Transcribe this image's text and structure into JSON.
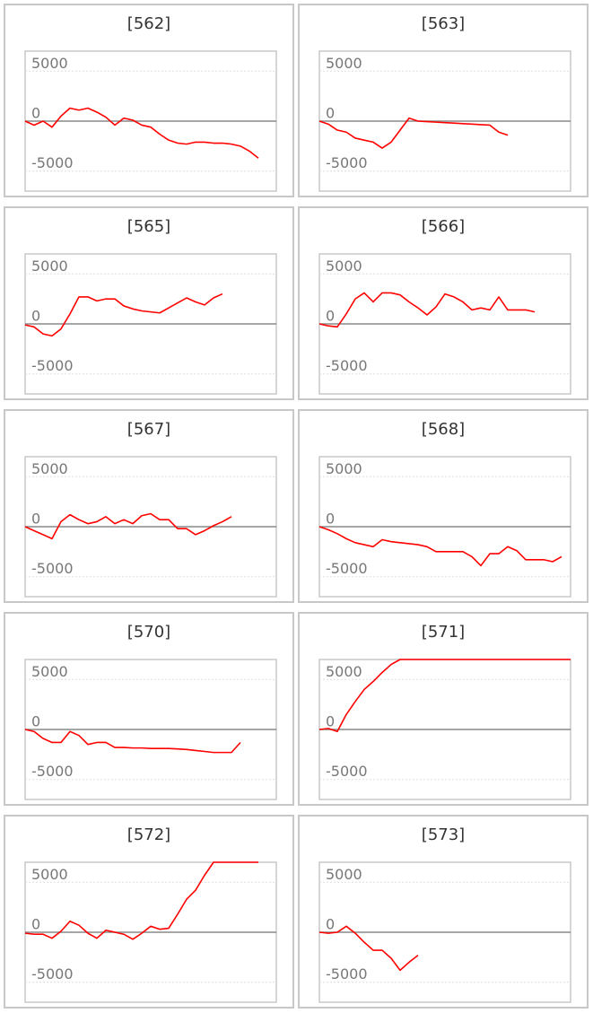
{
  "chart_data": [
    {
      "type": "line",
      "title": "[562]",
      "color": "#ff0000",
      "xlim": [
        0,
        28
      ],
      "ylim": [
        -7000,
        7000
      ],
      "yticks": [
        -5000,
        0,
        5000
      ],
      "values": [
        0,
        -400,
        0,
        -600,
        500,
        1300,
        1100,
        1300,
        900,
        400,
        -400,
        300,
        100,
        -400,
        -600,
        -1300,
        -1900,
        -2200,
        -2300,
        -2100,
        -2100,
        -2200,
        -2200,
        -2300,
        -2500,
        -3000,
        -3700
      ]
    },
    {
      "type": "line",
      "title": "[563]",
      "color": "#ff0000",
      "xlim": [
        0,
        28
      ],
      "ylim": [
        -7000,
        7000
      ],
      "yticks": [
        -5000,
        0,
        5000
      ],
      "values": [
        0,
        -300,
        -900,
        -1100,
        -1700,
        -1900,
        -2100,
        -2700,
        -2100,
        -900,
        300,
        0,
        -50,
        -100,
        -150,
        -200,
        -250,
        -300,
        -350,
        -400,
        -1100,
        -1400
      ]
    },
    {
      "type": "line",
      "title": "[565]",
      "color": "#ff0000",
      "xlim": [
        0,
        28
      ],
      "ylim": [
        -7000,
        7000
      ],
      "yticks": [
        -5000,
        0,
        5000
      ],
      "values": [
        -100,
        -300,
        -1000,
        -1200,
        -500,
        1000,
        2700,
        2700,
        2300,
        2500,
        2500,
        1800,
        1500,
        1300,
        1200,
        1100,
        1600,
        2100,
        2600,
        2200,
        1900,
        2600,
        3000
      ]
    },
    {
      "type": "line",
      "title": "[566]",
      "color": "#ff0000",
      "xlim": [
        0,
        28
      ],
      "ylim": [
        -7000,
        7000
      ],
      "yticks": [
        -5000,
        0,
        5000
      ],
      "values": [
        0,
        -200,
        -300,
        1000,
        2500,
        3100,
        2200,
        3100,
        3100,
        2900,
        2200,
        1600,
        900,
        1700,
        3000,
        2700,
        2200,
        1400,
        1600,
        1400,
        2700,
        1400,
        1400,
        1400,
        1200
      ]
    },
    {
      "type": "line",
      "title": "[567]",
      "color": "#ff0000",
      "xlim": [
        0,
        28
      ],
      "ylim": [
        -7000,
        7000
      ],
      "yticks": [
        -5000,
        0,
        5000
      ],
      "values": [
        0,
        -400,
        -800,
        -1200,
        500,
        1200,
        700,
        300,
        500,
        1000,
        300,
        700,
        300,
        1100,
        1300,
        700,
        700,
        -200,
        -200,
        -800,
        -400,
        100,
        500,
        1000
      ]
    },
    {
      "type": "line",
      "title": "[568]",
      "color": "#ff0000",
      "xlim": [
        0,
        28
      ],
      "ylim": [
        -7000,
        7000
      ],
      "yticks": [
        -5000,
        0,
        5000
      ],
      "values": [
        0,
        -300,
        -700,
        -1200,
        -1600,
        -1800,
        -2000,
        -1300,
        -1500,
        -1600,
        -1700,
        -1800,
        -2000,
        -2500,
        -2500,
        -2500,
        -2500,
        -3000,
        -3900,
        -2700,
        -2700,
        -2000,
        -2400,
        -3300,
        -3300,
        -3300,
        -3500,
        -3000
      ]
    },
    {
      "type": "line",
      "title": "[570]",
      "color": "#ff0000",
      "xlim": [
        0,
        28
      ],
      "ylim": [
        -7000,
        7000
      ],
      "yticks": [
        -5000,
        0,
        5000
      ],
      "values": [
        0,
        -200,
        -900,
        -1300,
        -1300,
        -200,
        -600,
        -1500,
        -1300,
        -1300,
        -1800,
        -1800,
        -1850,
        -1850,
        -1900,
        -1900,
        -1900,
        -1950,
        -2000,
        -2100,
        -2200,
        -2300,
        -2300,
        -2300,
        -1300
      ]
    },
    {
      "type": "line",
      "title": "[571]",
      "color": "#ff0000",
      "xlim": [
        0,
        28
      ],
      "ylim": [
        -7000,
        7000
      ],
      "yticks": [
        -5000,
        0,
        5000
      ],
      "values": [
        0,
        100,
        -200,
        1500,
        2800,
        4000,
        4800,
        5700,
        6500,
        7000,
        7000,
        7000,
        7000,
        7000,
        7000,
        7000,
        7000,
        7000,
        7000,
        7000,
        7000,
        7000,
        7000,
        7000,
        7000,
        7000,
        7000,
        7000,
        7000
      ]
    },
    {
      "type": "line",
      "title": "[572]",
      "color": "#ff0000",
      "xlim": [
        0,
        28
      ],
      "ylim": [
        -7000,
        7000
      ],
      "yticks": [
        -5000,
        0,
        5000
      ],
      "values": [
        -100,
        -200,
        -200,
        -600,
        100,
        1100,
        700,
        -100,
        -600,
        200,
        0,
        -200,
        -700,
        -100,
        600,
        300,
        400,
        1800,
        3300,
        4200,
        5700,
        7000,
        7000,
        7000,
        7000,
        7000,
        7000
      ]
    },
    {
      "type": "line",
      "title": "[573]",
      "color": "#ff0000",
      "xlim": [
        0,
        28
      ],
      "ylim": [
        -7000,
        7000
      ],
      "yticks": [
        -5000,
        0,
        5000
      ],
      "values": [
        0,
        -100,
        0,
        600,
        -100,
        -1000,
        -1800,
        -1800,
        -2600,
        -3800,
        -3000,
        -2300
      ]
    }
  ]
}
